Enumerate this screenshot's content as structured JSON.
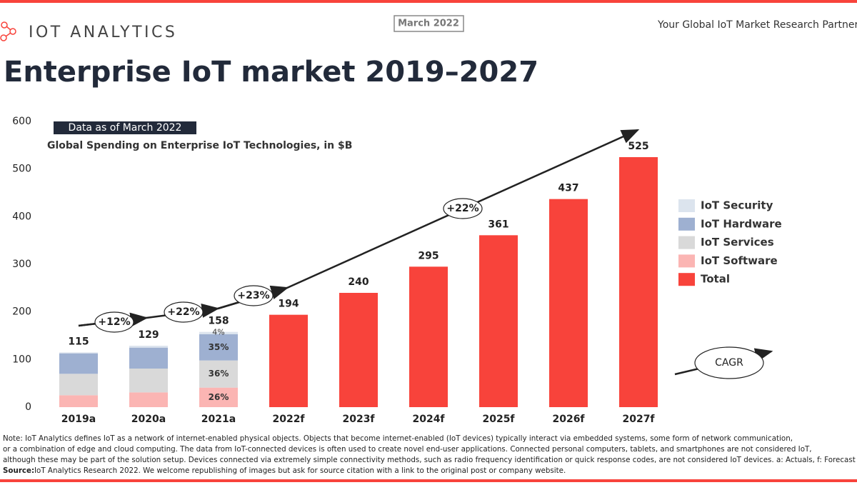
{
  "header": {
    "logo": "IOT ANALYTICS",
    "date": "March 2022",
    "tagline": "Your Global IoT Market Research Partner"
  },
  "chart_data": {
    "type": "stacked-bar",
    "title": "Enterprise IoT market 2019–2027",
    "badge": "Data as of March 2022",
    "subtitle": "Global Spending on Enterprise IoT Technologies, in $B",
    "categories": [
      "2019a",
      "2020a",
      "2021a",
      "2022f",
      "2023f",
      "2024f",
      "2025f",
      "2026f",
      "2027f"
    ],
    "series": [
      {
        "name": "IoT Software",
        "color": "#fbb5b3",
        "values": [
          25,
          31,
          41,
          null,
          null,
          null,
          null,
          null,
          null
        ],
        "value_labels": [
          null,
          null,
          "26%",
          null,
          null,
          null,
          null,
          null,
          null
        ]
      },
      {
        "name": "IoT Services",
        "color": "#d9d9d9",
        "values": [
          45,
          50,
          57,
          null,
          null,
          null,
          null,
          null,
          null
        ],
        "value_labels": [
          null,
          null,
          "36%",
          null,
          null,
          null,
          null,
          null,
          null
        ]
      },
      {
        "name": "IoT Hardware",
        "color": "#9eb0d1",
        "values": [
          43,
          44,
          55,
          null,
          null,
          null,
          null,
          null,
          null
        ],
        "value_labels": [
          null,
          null,
          "35%",
          null,
          null,
          null,
          null,
          null,
          null
        ]
      },
      {
        "name": "IoT Security",
        "color": "#dce4ee",
        "values": [
          2,
          4,
          5,
          null,
          null,
          null,
          null,
          null,
          null
        ],
        "value_labels": [
          null,
          null,
          "4%",
          null,
          null,
          null,
          null,
          null,
          null
        ]
      },
      {
        "name": "Total",
        "color": "#f8433b",
        "values": [
          115,
          129,
          158,
          194,
          240,
          295,
          361,
          437,
          525
        ]
      }
    ],
    "ylim": [
      0,
      600
    ],
    "yticks": [
      0,
      100,
      200,
      300,
      400,
      500,
      600
    ],
    "grid": false,
    "annotations": [
      "+12%",
      "+22%",
      "+23%",
      "+22%"
    ],
    "cagr_label": "CAGR"
  },
  "notes": [
    "Note: IoT Analytics defines IoT as a network of internet-enabled physical objects. Objects that become internet-enabled (IoT devices) typically interact via embedded systems, some form of network communication,",
    "or a combination of edge and cloud computing. The data from IoT-connected devices is often used to create novel end-user applications. Connected personal computers, tablets, and smartphones are not considered IoT,",
    "although these may be part of the solution setup. Devices connected via extremely simple connectivity methods, such as radio frequency identification or quick response codes, are not considered IoT devices. a: Actuals, f: Forecast"
  ],
  "source_label": "Source:",
  "source": "IoT Analytics Research 2022. We welcome republishing of images but ask for source citation with a link to the original post or company website."
}
